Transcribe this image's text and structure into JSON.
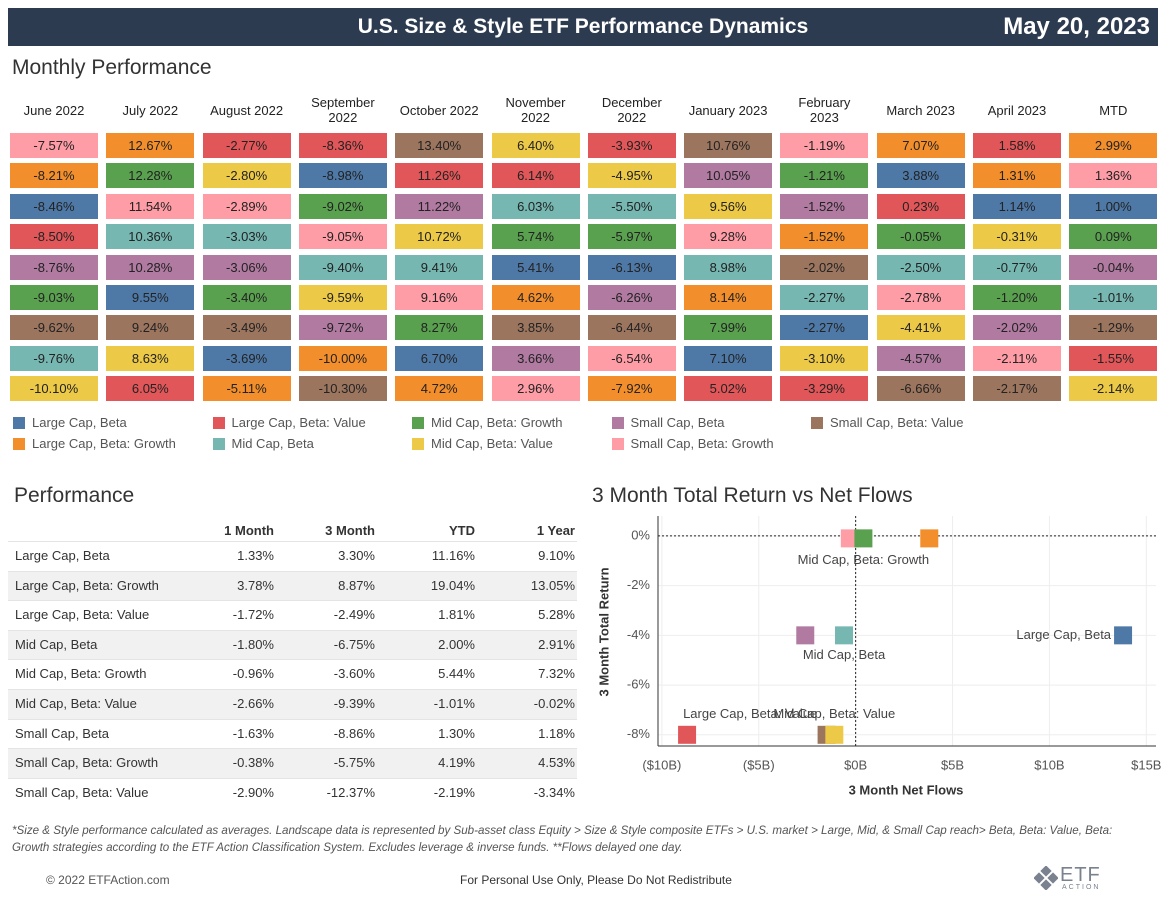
{
  "header": {
    "title": "U.S. Size & Style ETF Performance Dynamics",
    "date": "May 20, 2023"
  },
  "monthly": {
    "title": "Monthly Performance",
    "groups": [
      {
        "name": "Large Cap, Beta",
        "color": "#4e79a7"
      },
      {
        "name": "Large Cap, Beta: Growth",
        "color": "#f28e2b"
      },
      {
        "name": "Large Cap, Beta: Value",
        "color": "#e15759"
      },
      {
        "name": "Mid Cap, Beta",
        "color": "#76b7b2"
      },
      {
        "name": "Mid Cap, Beta: Growth",
        "color": "#59a14f"
      },
      {
        "name": "Mid Cap, Beta: Value",
        "color": "#edc948"
      },
      {
        "name": "Small Cap, Beta",
        "color": "#b07aa1"
      },
      {
        "name": "Small Cap, Beta: Growth",
        "color": "#ff9da7"
      },
      {
        "name": "Small Cap, Beta: Value",
        "color": "#9c755f"
      }
    ],
    "columns": [
      {
        "header": "June 2022",
        "cells": [
          {
            "text": "-7.57%",
            "group": 7
          },
          {
            "text": "-8.21%",
            "group": 1
          },
          {
            "text": "-8.46%",
            "group": 0
          },
          {
            "text": "-8.50%",
            "group": 2
          },
          {
            "text": "-8.76%",
            "group": 6
          },
          {
            "text": "-9.03%",
            "group": 4
          },
          {
            "text": "-9.62%",
            "group": 8
          },
          {
            "text": "-9.76%",
            "group": 3
          },
          {
            "text": "-10.10%",
            "group": 5
          }
        ]
      },
      {
        "header": "July 2022",
        "cells": [
          {
            "text": "12.67%",
            "group": 1
          },
          {
            "text": "12.28%",
            "group": 4
          },
          {
            "text": "11.54%",
            "group": 7
          },
          {
            "text": "10.36%",
            "group": 3
          },
          {
            "text": "10.28%",
            "group": 6
          },
          {
            "text": "9.55%",
            "group": 0
          },
          {
            "text": "9.24%",
            "group": 8
          },
          {
            "text": "8.63%",
            "group": 5
          },
          {
            "text": "6.05%",
            "group": 2
          }
        ]
      },
      {
        "header": "August 2022",
        "cells": [
          {
            "text": "-2.77%",
            "group": 2
          },
          {
            "text": "-2.80%",
            "group": 5
          },
          {
            "text": "-2.89%",
            "group": 7
          },
          {
            "text": "-3.03%",
            "group": 3
          },
          {
            "text": "-3.06%",
            "group": 6
          },
          {
            "text": "-3.40%",
            "group": 4
          },
          {
            "text": "-3.49%",
            "group": 8
          },
          {
            "text": "-3.69%",
            "group": 0
          },
          {
            "text": "-5.11%",
            "group": 1
          }
        ]
      },
      {
        "header": "September 2022",
        "cells": [
          {
            "text": "-8.36%",
            "group": 2
          },
          {
            "text": "-8.98%",
            "group": 0
          },
          {
            "text": "-9.02%",
            "group": 4
          },
          {
            "text": "-9.05%",
            "group": 7
          },
          {
            "text": "-9.40%",
            "group": 3
          },
          {
            "text": "-9.59%",
            "group": 5
          },
          {
            "text": "-9.72%",
            "group": 6
          },
          {
            "text": "-10.00%",
            "group": 1
          },
          {
            "text": "-10.30%",
            "group": 8
          }
        ]
      },
      {
        "header": "October 2022",
        "cells": [
          {
            "text": "13.40%",
            "group": 8
          },
          {
            "text": "11.26%",
            "group": 2
          },
          {
            "text": "11.22%",
            "group": 6
          },
          {
            "text": "10.72%",
            "group": 5
          },
          {
            "text": "9.41%",
            "group": 3
          },
          {
            "text": "9.16%",
            "group": 7
          },
          {
            "text": "8.27%",
            "group": 4
          },
          {
            "text": "6.70%",
            "group": 0
          },
          {
            "text": "4.72%",
            "group": 1
          }
        ]
      },
      {
        "header": "November 2022",
        "cells": [
          {
            "text": "6.40%",
            "group": 5
          },
          {
            "text": "6.14%",
            "group": 2
          },
          {
            "text": "6.03%",
            "group": 3
          },
          {
            "text": "5.74%",
            "group": 4
          },
          {
            "text": "5.41%",
            "group": 0
          },
          {
            "text": "4.62%",
            "group": 1
          },
          {
            "text": "3.85%",
            "group": 8
          },
          {
            "text": "3.66%",
            "group": 6
          },
          {
            "text": "2.96%",
            "group": 7
          }
        ]
      },
      {
        "header": "December 2022",
        "cells": [
          {
            "text": "-3.93%",
            "group": 2
          },
          {
            "text": "-4.95%",
            "group": 5
          },
          {
            "text": "-5.50%",
            "group": 3
          },
          {
            "text": "-5.97%",
            "group": 4
          },
          {
            "text": "-6.13%",
            "group": 0
          },
          {
            "text": "-6.26%",
            "group": 6
          },
          {
            "text": "-6.44%",
            "group": 8
          },
          {
            "text": "-6.54%",
            "group": 7
          },
          {
            "text": "-7.92%",
            "group": 1
          }
        ]
      },
      {
        "header": "January 2023",
        "cells": [
          {
            "text": "10.76%",
            "group": 8
          },
          {
            "text": "10.05%",
            "group": 6
          },
          {
            "text": "9.56%",
            "group": 5
          },
          {
            "text": "9.28%",
            "group": 7
          },
          {
            "text": "8.98%",
            "group": 3
          },
          {
            "text": "8.14%",
            "group": 1
          },
          {
            "text": "7.99%",
            "group": 4
          },
          {
            "text": "7.10%",
            "group": 0
          },
          {
            "text": "5.02%",
            "group": 2
          }
        ]
      },
      {
        "header": "February 2023",
        "cells": [
          {
            "text": "-1.19%",
            "group": 7
          },
          {
            "text": "-1.21%",
            "group": 4
          },
          {
            "text": "-1.52%",
            "group": 6
          },
          {
            "text": "-1.52%",
            "group": 1
          },
          {
            "text": "-2.02%",
            "group": 8
          },
          {
            "text": "-2.27%",
            "group": 3
          },
          {
            "text": "-2.27%",
            "group": 0
          },
          {
            "text": "-3.10%",
            "group": 5
          },
          {
            "text": "-3.29%",
            "group": 2
          }
        ]
      },
      {
        "header": "March 2023",
        "cells": [
          {
            "text": "7.07%",
            "group": 1
          },
          {
            "text": "3.88%",
            "group": 0
          },
          {
            "text": "0.23%",
            "group": 2
          },
          {
            "text": "-0.05%",
            "group": 4
          },
          {
            "text": "-2.50%",
            "group": 3
          },
          {
            "text": "-2.78%",
            "group": 7
          },
          {
            "text": "-4.41%",
            "group": 5
          },
          {
            "text": "-4.57%",
            "group": 6
          },
          {
            "text": "-6.66%",
            "group": 8
          }
        ]
      },
      {
        "header": "April 2023",
        "cells": [
          {
            "text": "1.58%",
            "group": 2
          },
          {
            "text": "1.31%",
            "group": 1
          },
          {
            "text": "1.14%",
            "group": 0
          },
          {
            "text": "-0.31%",
            "group": 5
          },
          {
            "text": "-0.77%",
            "group": 3
          },
          {
            "text": "-1.20%",
            "group": 4
          },
          {
            "text": "-2.02%",
            "group": 6
          },
          {
            "text": "-2.11%",
            "group": 7
          },
          {
            "text": "-2.17%",
            "group": 8
          }
        ]
      },
      {
        "header": "MTD",
        "cells": [
          {
            "text": "2.99%",
            "group": 1
          },
          {
            "text": "1.36%",
            "group": 7
          },
          {
            "text": "1.00%",
            "group": 0
          },
          {
            "text": "0.09%",
            "group": 4
          },
          {
            "text": "-0.04%",
            "group": 6
          },
          {
            "text": "-1.01%",
            "group": 3
          },
          {
            "text": "-1.29%",
            "group": 8
          },
          {
            "text": "-1.55%",
            "group": 2
          },
          {
            "text": "-2.14%",
            "group": 5
          }
        ]
      }
    ]
  },
  "performance": {
    "title": "Performance",
    "columns": [
      "1 Month",
      "3 Month",
      "YTD",
      "1 Year"
    ],
    "rows": [
      {
        "name": "Large Cap, Beta",
        "values": [
          "1.33%",
          "3.30%",
          "11.16%",
          "9.10%"
        ]
      },
      {
        "name": "Large Cap, Beta: Growth",
        "values": [
          "3.78%",
          "8.87%",
          "19.04%",
          "13.05%"
        ]
      },
      {
        "name": "Large Cap, Beta: Value",
        "values": [
          "-1.72%",
          "-2.49%",
          "1.81%",
          "5.28%"
        ]
      },
      {
        "name": "Mid Cap, Beta",
        "values": [
          "-1.80%",
          "-6.75%",
          "2.00%",
          "2.91%"
        ]
      },
      {
        "name": "Mid Cap, Beta: Growth",
        "values": [
          "-0.96%",
          "-3.60%",
          "5.44%",
          "7.32%"
        ]
      },
      {
        "name": "Mid Cap, Beta: Value",
        "values": [
          "-2.66%",
          "-9.39%",
          "-1.01%",
          "-0.02%"
        ]
      },
      {
        "name": "Small Cap, Beta",
        "values": [
          "-1.63%",
          "-8.86%",
          "1.30%",
          "1.18%"
        ]
      },
      {
        "name": "Small Cap, Beta: Growth",
        "values": [
          "-0.38%",
          "-5.75%",
          "4.19%",
          "4.53%"
        ]
      },
      {
        "name": "Small Cap, Beta: Value",
        "values": [
          "-2.90%",
          "-12.37%",
          "-2.19%",
          "-3.34%"
        ]
      }
    ]
  },
  "chart_data": {
    "type": "scatter",
    "title": "3 Month Total Return vs Net Flows",
    "xlabel": "3 Month Net Flows",
    "ylabel": "3 Month Total Return",
    "xlim": [
      -10.2,
      15.5
    ],
    "ylim": [
      -8.45,
      0.8
    ],
    "xticks": [
      {
        "value": -10,
        "label": "($10B)"
      },
      {
        "value": -5,
        "label": "($5B)"
      },
      {
        "value": 0,
        "label": "$0B"
      },
      {
        "value": 5,
        "label": "$5B"
      },
      {
        "value": 10,
        "label": "$10B"
      },
      {
        "value": 15,
        "label": "$15B"
      }
    ],
    "yticks": [
      {
        "value": 0,
        "label": "0%"
      },
      {
        "value": -2,
        "label": "-2%"
      },
      {
        "value": -4,
        "label": "-4%"
      },
      {
        "value": -6,
        "label": "-6%"
      },
      {
        "value": -8,
        "label": "-8%"
      }
    ],
    "grid": true,
    "series": [
      {
        "color": "#ff9da7",
        "x": [
          -0.3
        ],
        "values": [
          -0.1
        ]
      },
      {
        "label": "Mid Cap, Beta: Growth",
        "color": "#59a14f",
        "x": [
          0.4
        ],
        "values": [
          -0.1
        ]
      },
      {
        "color": "#f28e2b",
        "x": [
          3.8
        ],
        "values": [
          -0.1
        ]
      },
      {
        "label": "Large Cap, Beta",
        "color": "#4e79a7",
        "x": [
          13.8
        ],
        "values": [
          -4.0
        ]
      },
      {
        "color": "#b07aa1",
        "x": [
          -2.6
        ],
        "values": [
          -4.0
        ]
      },
      {
        "label": "Mid Cap, Beta",
        "color": "#76b7b2",
        "x": [
          -0.6
        ],
        "values": [
          -4.0
        ]
      },
      {
        "label": "Large Cap, Beta: Value",
        "color": "#e15759",
        "x": [
          -8.7
        ],
        "values": [
          -8.0
        ]
      },
      {
        "color": "#9c755f",
        "x": [
          -1.5
        ],
        "values": [
          -8.0
        ]
      },
      {
        "label": "Mid Cap, Beta: Value",
        "color": "#edc948",
        "x": [
          -1.1
        ],
        "values": [
          -8.0
        ]
      }
    ]
  },
  "footer": {
    "note": "*Size & Style performance calculated as averages. Landscape data is represented by Sub-asset class Equity > Size & Style composite ETFs > U.S. market > Large, Mid, & Small Cap reach> Beta, Beta: Value, Beta: Growth strategies according to the ETF Action Classification System. Excludes leverage & inverse funds. **Flows delayed one day.",
    "copyright": "© 2022 ETFAction.com",
    "notice": "For Personal Use Only, Please Do Not Redistribute",
    "logo": {
      "name": "ETF",
      "sub": "ACTION"
    }
  }
}
